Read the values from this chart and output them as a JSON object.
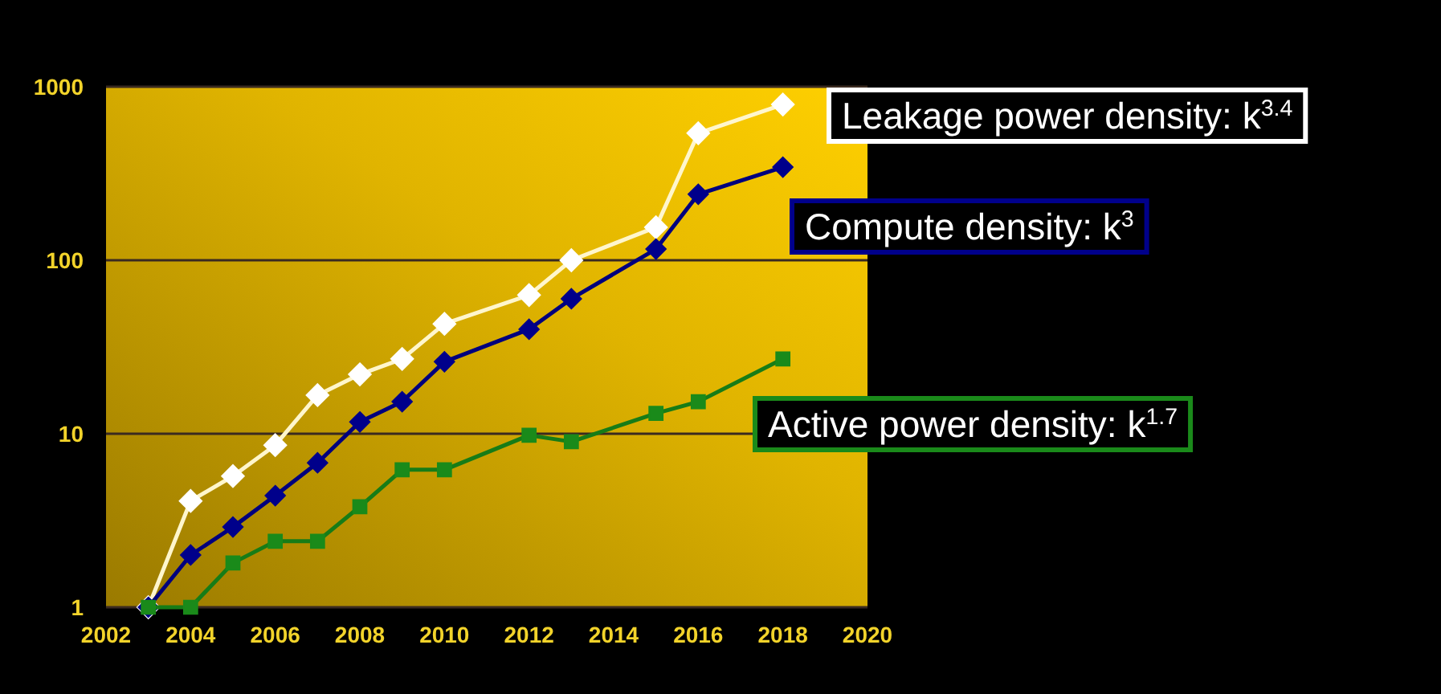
{
  "chart_data": {
    "type": "line",
    "log": "y",
    "xlim": [
      2002,
      2020
    ],
    "xticks": [
      2002,
      2004,
      2006,
      2008,
      2010,
      2012,
      2014,
      2016,
      2018,
      2020
    ],
    "ylim": [
      1,
      1000
    ],
    "yticks": [
      1,
      10,
      100,
      1000
    ],
    "grid": "y",
    "legend": "right",
    "x": [
      2003,
      2004,
      2005,
      2006,
      2007,
      2008,
      2009,
      2010,
      2012,
      2013,
      2015,
      2016,
      2018
    ],
    "series": [
      {
        "name": "Leakage power density: k$^{3.4}$",
        "color": "#ffffff",
        "marker": "diamond",
        "values": [
          1,
          4.1,
          5.7,
          8.6,
          16.7,
          22,
          27,
          43,
          63,
          100,
          155,
          540,
          790
        ]
      },
      {
        "name": "Compute density: k$^{3}$",
        "color": "#00008b",
        "marker": "diamond",
        "values": [
          1,
          2,
          2.9,
          4.4,
          6.8,
          11.7,
          15.3,
          26,
          40,
          60,
          116,
          240,
          344
        ]
      },
      {
        "name": "Active power density: k$^{1.7}$",
        "color": "#1a8a1a",
        "marker": "square",
        "values": [
          1,
          1,
          1.8,
          2.4,
          2.4,
          3.8,
          6.2,
          6.2,
          9.8,
          9,
          13.1,
          15.3,
          27
        ]
      }
    ]
  }
}
